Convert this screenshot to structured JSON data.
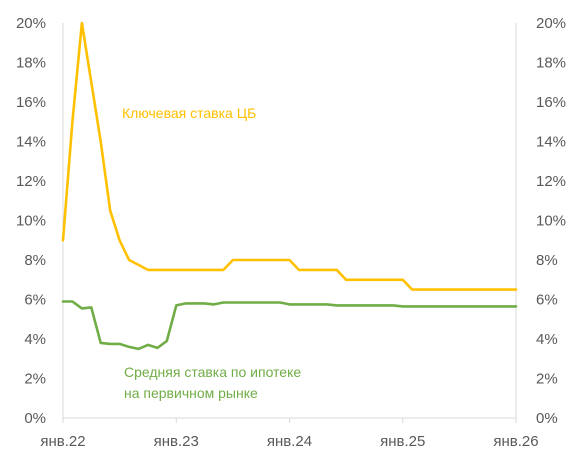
{
  "chart_data": {
    "type": "line",
    "x_axis": {
      "tick_labels": [
        "янв.22",
        "янв.23",
        "янв.24",
        "янв.25",
        "янв.26"
      ],
      "tick_values": [
        2022,
        2023,
        2024,
        2025,
        2026
      ],
      "range": [
        2022,
        2026
      ]
    },
    "y_axis_left": {
      "tick_labels": [
        "0%",
        "2%",
        "4%",
        "6%",
        "8%",
        "10%",
        "12%",
        "14%",
        "16%",
        "18%",
        "20%"
      ],
      "range": [
        0,
        20
      ]
    },
    "y_axis_right": {
      "tick_labels": [
        "0%",
        "2%",
        "4%",
        "6%",
        "8%",
        "10%",
        "12%",
        "14%",
        "16%",
        "18%",
        "20%"
      ],
      "range": [
        0,
        20
      ]
    },
    "grid": false,
    "series": [
      {
        "name": "Ключевая ставка ЦБ",
        "color": "#FFC000",
        "label_lines": [
          "Ключевая ставка ЦБ"
        ],
        "points": [
          [
            "2022-01",
            9.0
          ],
          [
            "2022-02",
            15.0
          ],
          [
            "2022-03",
            20.0
          ],
          [
            "2022-04",
            17.0
          ],
          [
            "2022-05",
            14.0
          ],
          [
            "2022-06",
            10.5
          ],
          [
            "2022-07",
            9.0
          ],
          [
            "2022-08",
            8.0
          ],
          [
            "2022-09",
            7.75
          ],
          [
            "2022-10",
            7.5
          ],
          [
            "2022-11",
            7.5
          ],
          [
            "2022-12",
            7.5
          ],
          [
            "2023-01",
            7.5
          ],
          [
            "2023-02",
            7.5
          ],
          [
            "2023-03",
            7.5
          ],
          [
            "2023-04",
            7.5
          ],
          [
            "2023-05",
            7.5
          ],
          [
            "2023-06",
            7.5
          ],
          [
            "2023-07",
            8.0
          ],
          [
            "2023-08",
            8.0
          ],
          [
            "2023-09",
            8.0
          ],
          [
            "2023-10",
            8.0
          ],
          [
            "2023-11",
            8.0
          ],
          [
            "2023-12",
            8.0
          ],
          [
            "2024-01",
            8.0
          ],
          [
            "2024-02",
            7.5
          ],
          [
            "2024-03",
            7.5
          ],
          [
            "2024-04",
            7.5
          ],
          [
            "2024-05",
            7.5
          ],
          [
            "2024-06",
            7.5
          ],
          [
            "2024-07",
            7.0
          ],
          [
            "2024-08",
            7.0
          ],
          [
            "2024-09",
            7.0
          ],
          [
            "2024-10",
            7.0
          ],
          [
            "2024-11",
            7.0
          ],
          [
            "2024-12",
            7.0
          ],
          [
            "2025-01",
            7.0
          ],
          [
            "2025-02",
            6.5
          ],
          [
            "2025-03",
            6.5
          ],
          [
            "2025-04",
            6.5
          ],
          [
            "2025-05",
            6.5
          ],
          [
            "2025-06",
            6.5
          ],
          [
            "2025-07",
            6.5
          ],
          [
            "2025-08",
            6.5
          ],
          [
            "2025-09",
            6.5
          ],
          [
            "2025-10",
            6.5
          ],
          [
            "2025-11",
            6.5
          ],
          [
            "2025-12",
            6.5
          ],
          [
            "2026-01",
            6.5
          ]
        ]
      },
      {
        "name": "Средняя ставка по ипотеке на первичном рынке",
        "color": "#70AD47",
        "label_lines": [
          "Средняя ставка по ипотеке",
          "на первичном рынке"
        ],
        "points": [
          [
            "2022-01",
            5.9
          ],
          [
            "2022-02",
            5.9
          ],
          [
            "2022-03",
            5.55
          ],
          [
            "2022-04",
            5.6
          ],
          [
            "2022-05",
            3.8
          ],
          [
            "2022-06",
            3.75
          ],
          [
            "2022-07",
            3.75
          ],
          [
            "2022-08",
            3.6
          ],
          [
            "2022-09",
            3.5
          ],
          [
            "2022-10",
            3.7
          ],
          [
            "2022-11",
            3.55
          ],
          [
            "2022-12",
            3.9
          ],
          [
            "2023-01",
            5.7
          ],
          [
            "2023-02",
            5.8
          ],
          [
            "2023-03",
            5.8
          ],
          [
            "2023-04",
            5.8
          ],
          [
            "2023-05",
            5.75
          ],
          [
            "2023-06",
            5.85
          ],
          [
            "2023-07",
            5.85
          ],
          [
            "2023-08",
            5.85
          ],
          [
            "2023-09",
            5.85
          ],
          [
            "2023-10",
            5.85
          ],
          [
            "2023-11",
            5.85
          ],
          [
            "2023-12",
            5.85
          ],
          [
            "2024-01",
            5.75
          ],
          [
            "2024-02",
            5.75
          ],
          [
            "2024-03",
            5.75
          ],
          [
            "2024-04",
            5.75
          ],
          [
            "2024-05",
            5.75
          ],
          [
            "2024-06",
            5.7
          ],
          [
            "2024-07",
            5.7
          ],
          [
            "2024-08",
            5.7
          ],
          [
            "2024-09",
            5.7
          ],
          [
            "2024-10",
            5.7
          ],
          [
            "2024-11",
            5.7
          ],
          [
            "2024-12",
            5.7
          ],
          [
            "2025-01",
            5.65
          ],
          [
            "2025-02",
            5.65
          ],
          [
            "2025-03",
            5.65
          ],
          [
            "2025-04",
            5.65
          ],
          [
            "2025-05",
            5.65
          ],
          [
            "2025-06",
            5.65
          ],
          [
            "2025-07",
            5.65
          ],
          [
            "2025-08",
            5.65
          ],
          [
            "2025-09",
            5.65
          ],
          [
            "2025-10",
            5.65
          ],
          [
            "2025-11",
            5.65
          ],
          [
            "2025-12",
            5.65
          ],
          [
            "2026-01",
            5.65
          ]
        ]
      }
    ],
    "axis_color": "#D9D9D9",
    "text_color": "#595959"
  }
}
